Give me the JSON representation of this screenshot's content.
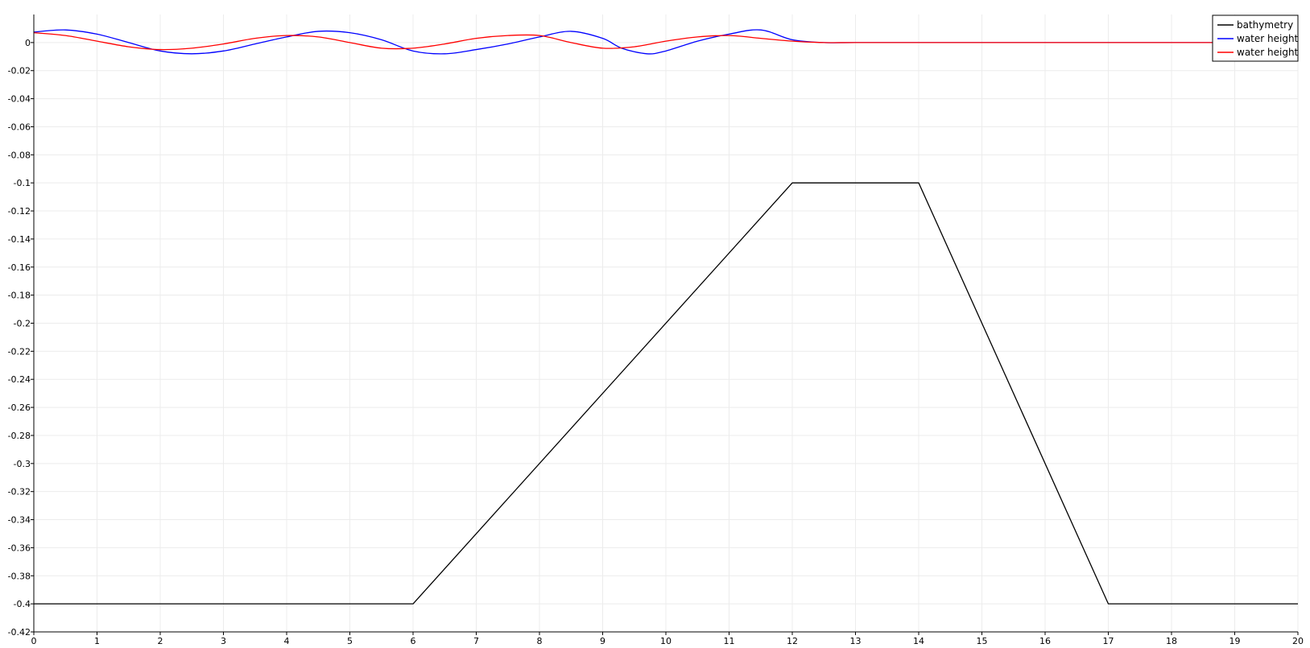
{
  "chart_data": {
    "type": "line",
    "title": "",
    "xlabel": "",
    "ylabel": "",
    "xlim": [
      0,
      20
    ],
    "ylim": [
      -0.42,
      0.02
    ],
    "x_ticks": [
      0,
      1,
      2,
      3,
      4,
      5,
      6,
      7,
      8,
      9,
      10,
      11,
      12,
      13,
      14,
      15,
      16,
      17,
      18,
      19,
      20
    ],
    "y_ticks": [
      0,
      -0.02,
      -0.04,
      -0.06,
      -0.08,
      -0.1,
      -0.12,
      -0.14,
      -0.16,
      -0.18,
      -0.2,
      -0.22,
      -0.24,
      -0.26,
      -0.28,
      -0.3,
      -0.32,
      -0.34,
      -0.36,
      -0.38,
      -0.4,
      -0.42
    ],
    "x_tick_labels": [
      "0",
      "1",
      "2",
      "3",
      "4",
      "5",
      "6",
      "7",
      "8",
      "9",
      "10",
      "11",
      "12",
      "13",
      "14",
      "15",
      "16",
      "17",
      "18",
      "19",
      "20"
    ],
    "y_tick_labels": [
      "0",
      "-0.02",
      "-0.04",
      "-0.06",
      "-0.08",
      "-0.1",
      "-0.12",
      "-0.14",
      "-0.16",
      "-0.18",
      "-0.2",
      "-0.22",
      "-0.24",
      "-0.26",
      "-0.28",
      "-0.3",
      "-0.32",
      "-0.34",
      "-0.36",
      "-0.38",
      "-0.4",
      "-0.42"
    ],
    "grid": true,
    "legend_position": "top-right",
    "series": [
      {
        "name": "bathymetry",
        "color": "#000000",
        "x": [
          0,
          6,
          12,
          14,
          17,
          20
        ],
        "y": [
          -0.4,
          -0.4,
          -0.1,
          -0.1,
          -0.4,
          -0.4
        ]
      },
      {
        "name": "water height",
        "color": "#0000ff",
        "x": [
          0,
          0.5,
          1,
          1.5,
          2,
          2.5,
          3,
          3.5,
          4,
          4.5,
          5,
          5.5,
          6,
          6.5,
          7,
          7.5,
          8,
          8.5,
          9,
          9.3,
          9.7,
          10,
          10.5,
          11,
          11.5,
          12,
          12.5,
          13,
          14,
          15,
          16,
          17,
          18,
          19,
          20
        ],
        "y": [
          0.0075,
          0.009,
          0.006,
          0.0,
          -0.006,
          -0.008,
          -0.006,
          -0.001,
          0.004,
          0.008,
          0.007,
          0.002,
          -0.006,
          -0.008,
          -0.005,
          -0.001,
          0.004,
          0.008,
          0.003,
          -0.004,
          -0.008,
          -0.006,
          0.001,
          0.006,
          0.009,
          0.002,
          0.0,
          0.0,
          0.0,
          0.0,
          0.0,
          0.0,
          0.0,
          0.0,
          0.0
        ]
      },
      {
        "name": "water height",
        "color": "#ff0000",
        "x": [
          0,
          0.5,
          1,
          1.5,
          2,
          2.5,
          3,
          3.5,
          4,
          4.5,
          5,
          5.5,
          6,
          6.5,
          7,
          7.5,
          8,
          8.5,
          9,
          9.5,
          10,
          10.5,
          11,
          11.5,
          12,
          12.5,
          13,
          14,
          15,
          16,
          17,
          18,
          19,
          20
        ],
        "y": [
          0.007,
          0.005,
          0.001,
          -0.003,
          -0.005,
          -0.004,
          -0.001,
          0.003,
          0.005,
          0.004,
          0.0,
          -0.004,
          -0.004,
          -0.001,
          0.003,
          0.005,
          0.005,
          0.0,
          -0.004,
          -0.003,
          0.001,
          0.004,
          0.005,
          0.003,
          0.001,
          0.0,
          0.0,
          0.0,
          0.0,
          0.0,
          0.0,
          0.0,
          0.0,
          0.0
        ]
      }
    ]
  }
}
